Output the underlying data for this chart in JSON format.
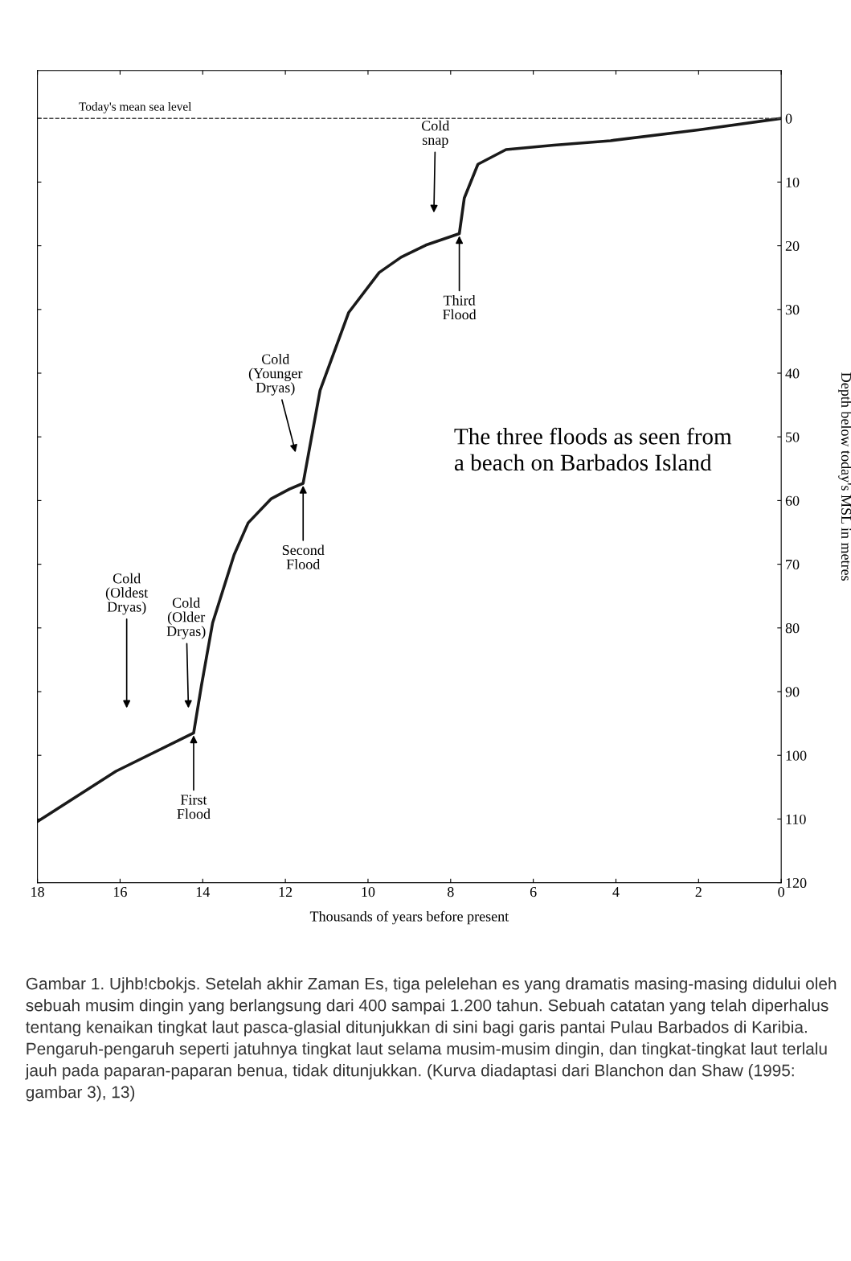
{
  "chart_data": {
    "type": "line",
    "xlabel": "Thousands of years before present",
    "ylabel": "Depth below today's MSL in metres",
    "series": [
      {
        "color": "#1a1a1a",
        "x": [
          18,
          16.1,
          14.22,
          14.03,
          13.76,
          13.24,
          12.9,
          12.34,
          11.9,
          11.57,
          11.16,
          10.47,
          9.73,
          9.2,
          8.6,
          7.79,
          7.67,
          7.34,
          6.66,
          5.5,
          4.13,
          2,
          0
        ],
        "values": [
          110.4,
          102.5,
          96.5,
          89,
          79.2,
          68.5,
          63.5,
          59.7,
          58.2,
          57.3,
          42.7,
          30.5,
          24.2,
          21.8,
          19.9,
          18.1,
          12.5,
          7.2,
          4.9,
          4.2,
          3.5,
          1.8,
          0
        ]
      }
    ],
    "xlim": [
      18,
      0
    ],
    "xticks": [
      18,
      16,
      14,
      12,
      10,
      8,
      6,
      4,
      2,
      0
    ],
    "ylim": [
      120,
      -7.5
    ],
    "yticks": [
      0,
      10,
      20,
      30,
      40,
      50,
      60,
      70,
      80,
      90,
      100,
      110,
      120
    ],
    "line_style": "solid",
    "marker": "none",
    "grid": false,
    "legend": false,
    "ref_lines": [
      {
        "axis": "y",
        "value": 0,
        "label": "Today's mean sea level",
        "line_style": "dashed",
        "color": "#444444"
      }
    ],
    "annotations": [
      "Cold\n(Oldest\nDryas)",
      "Cold\n(Older\nDryas)",
      "Cold\n(Younger\nDryas)",
      "Cold\nsnap",
      {
        "text": "First\nFlood",
        "x": 14.22,
        "y": 96.5
      },
      {
        "text": "Second\nFlood",
        "x": 11.57,
        "y": 57.3
      },
      {
        "text": "Third\nFlood",
        "x": 7.79,
        "y": 18.1
      },
      "The three floods as seen from\na beach on Barbados Island",
      "Gambar 1. Ujhb!cbokjs. Setelah akhir Zaman Es, tiga pelelehan es yang dramatis masing-masing didului oleh sebuah musim dingin yang berlangsung dari 400 sampai 1.200 tahun. Sebuah catatan yang telah diperhalus tentang kenaikan tingkat laut pasca-glasial ditunjukkan di sini bagi garis pantai Pulau Barbados di Karibia. Pengaruh-pengaruh seperti jatuhnya tingkat laut selama musim-musim dingin, dan tingkat-tingkat laut terlalu jauh pada paparan-paparan benua, tidak ditunjukkan. (Kurva diadaptasi dari Blanchon dan Shaw (1995: gambar 3), 13)"
    ]
  }
}
